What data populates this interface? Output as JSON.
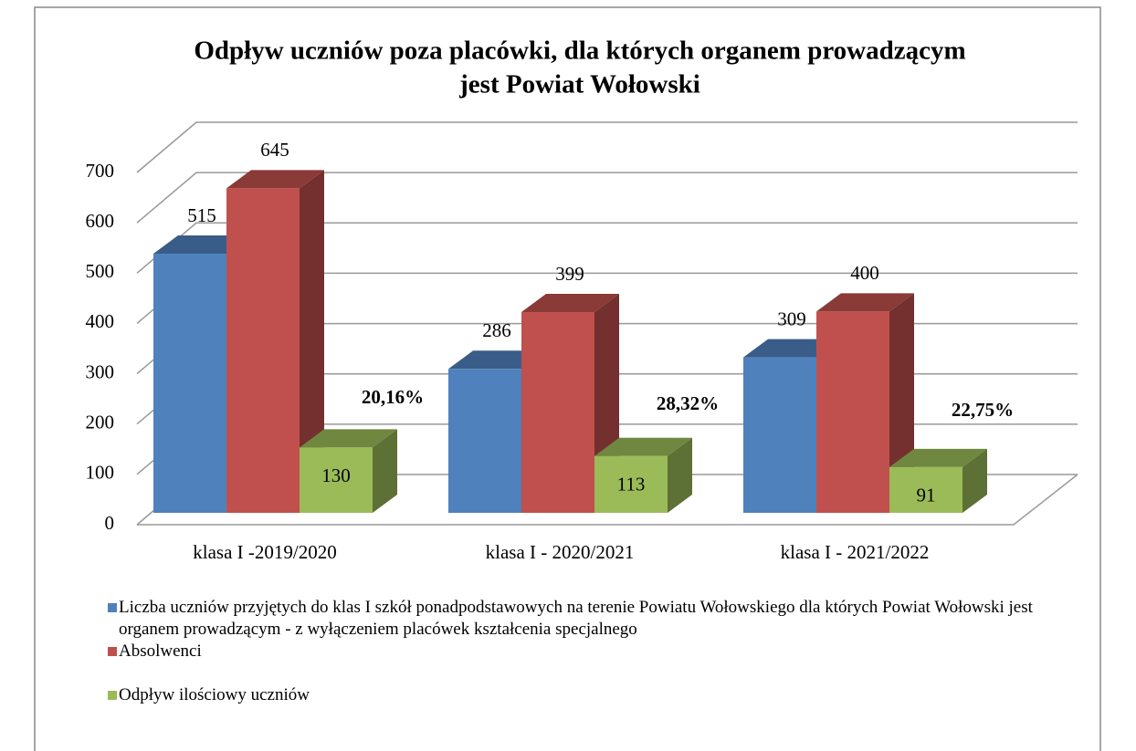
{
  "chart_data": {
    "type": "bar3d",
    "title": "Odpływ uczniów poza placówki, dla których organem prowadzącym",
    "subtitle": "jest Powiat Wołowski",
    "categories": [
      "klasa I -2019/2020",
      "klasa I - 2020/2021",
      "klasa I - 2021/2022"
    ],
    "series": [
      {
        "name": "Liczba uczniów przyjętych do klas I szkół ponadpodstawowych na terenie Powiatu Wołowskiego dla których Powiat Wołowski jest organem prowadzącym - z wyłączeniem placówek kształcenia specjalnego",
        "color": "#4f81bd",
        "values": [
          515,
          286,
          309
        ]
      },
      {
        "name": "Absolwenci",
        "color": "#c0504d",
        "values": [
          645,
          399,
          400
        ]
      },
      {
        "name": "Odpływ ilościowy uczniów",
        "color": "#9bbb59",
        "values": [
          130,
          113,
          91
        ]
      }
    ],
    "annotations": [
      "20,16%",
      "28,32%",
      "22,75%"
    ],
    "annotation_color": "#ff0000",
    "ylim": [
      0,
      700
    ],
    "yticks": [
      0,
      100,
      200,
      300,
      400,
      500,
      600,
      700
    ],
    "grid": true
  }
}
